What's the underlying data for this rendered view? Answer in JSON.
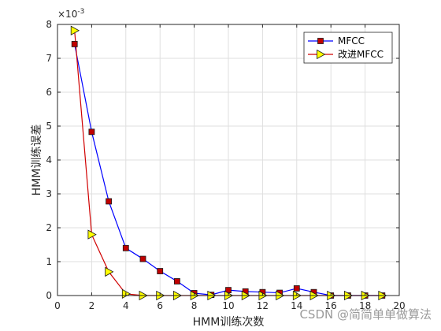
{
  "chart_data": {
    "type": "line",
    "title": "",
    "xlabel": "HMM训练次数",
    "ylabel": "HMM训练误差",
    "y_exponent_label": "×10",
    "y_exponent_value": "-3",
    "xlim": [
      0,
      20
    ],
    "ylim": [
      0,
      8
    ],
    "x_ticks": [
      0,
      2,
      4,
      6,
      8,
      10,
      12,
      14,
      16,
      18,
      20
    ],
    "y_ticks": [
      0,
      1,
      2,
      3,
      4,
      5,
      6,
      7,
      8
    ],
    "grid": true,
    "legend_position": "top-right",
    "x": [
      1,
      2,
      3,
      4,
      5,
      6,
      7,
      8,
      9,
      10,
      11,
      12,
      13,
      14,
      15,
      16,
      17,
      18,
      19
    ],
    "series": [
      {
        "name": "MFCC",
        "color": "#0000ff",
        "marker": "square",
        "marker_fill": "#c00000",
        "values": [
          7.42,
          4.83,
          2.78,
          1.4,
          1.08,
          0.72,
          0.42,
          0.07,
          0.02,
          0.16,
          0.12,
          0.1,
          0.08,
          0.21,
          0.1,
          0.0,
          0.0,
          0.0,
          0.0
        ]
      },
      {
        "name": "改进MFCC",
        "color": "#d00000",
        "marker": "triangle-right",
        "marker_fill": "#ffff00",
        "values": [
          7.82,
          1.8,
          0.7,
          0.05,
          0.0,
          0.0,
          0.0,
          0.0,
          0.0,
          0.0,
          0.0,
          0.0,
          0.0,
          0.0,
          0.0,
          0.0,
          0.0,
          0.0,
          0.0
        ]
      }
    ]
  },
  "watermark": {
    "text": "CSDN @简简单单做算法"
  }
}
